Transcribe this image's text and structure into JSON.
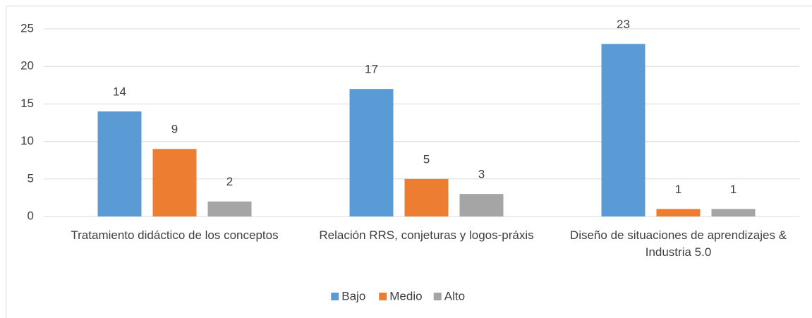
{
  "chart_data": {
    "type": "bar",
    "categories": [
      "Tratamiento didáctico de los conceptos",
      "Relación RRS, conjeturas y logos-práxis",
      "Diseño de situaciones de aprendizajes & Industria 5.0"
    ],
    "series": [
      {
        "name": "Bajo",
        "color": "#5b9bd5",
        "values": [
          14,
          17,
          23
        ]
      },
      {
        "name": "Medio",
        "color": "#ed7d31",
        "values": [
          9,
          5,
          1
        ]
      },
      {
        "name": "Alto",
        "color": "#a5a5a5",
        "values": [
          2,
          3,
          1
        ]
      }
    ],
    "ylim": [
      0,
      25
    ],
    "yticks": [
      0,
      5,
      10,
      15,
      20,
      25
    ],
    "grid": true,
    "legend": "bottom"
  }
}
